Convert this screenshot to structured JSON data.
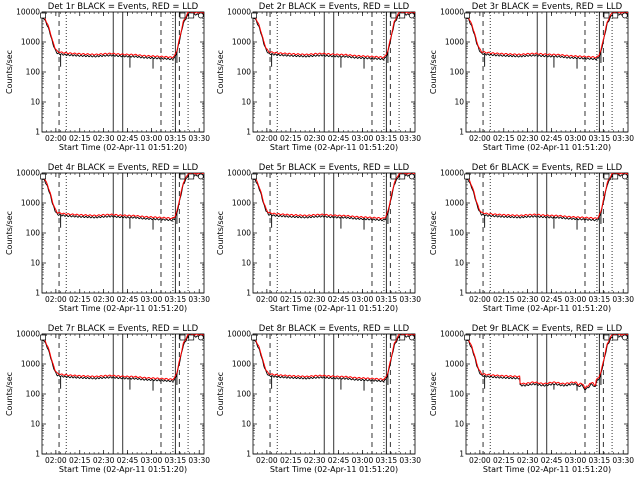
{
  "figure": {
    "panels": [
      {
        "title": "Det 1r BLACK = Events, RED = LLD"
      },
      {
        "title": "Det 2r BLACK = Events, RED = LLD"
      },
      {
        "title": "Det 3r BLACK = Events, RED = LLD"
      },
      {
        "title": "Det 4r BLACK = Events, RED = LLD"
      },
      {
        "title": "Det 5r BLACK = Events, RED = LLD"
      },
      {
        "title": "Det 6r BLACK = Events, RED = LLD"
      },
      {
        "title": "Det 7r BLACK = Events, RED = LLD"
      },
      {
        "title": "Det 8r BLACK = Events, RED = LLD"
      },
      {
        "title": "Det 9r BLACK = Events, RED = LLD"
      }
    ],
    "ylabel": "Counts/sec",
    "xlabel": "Start Time (02-Apr-11 01:51:20)",
    "colors": {
      "events": "#000000",
      "lld": "#ff0000",
      "background": "#ffffff"
    }
  },
  "chart_data": {
    "type": "line",
    "layout": "3x3 grid of identical panels (detectors 1r-9r)",
    "yscale": "log",
    "ylim": [
      1,
      10000
    ],
    "yticks": [
      "1",
      "10",
      "100",
      "1000",
      "10000"
    ],
    "xticks": [
      "02:00",
      "02:15",
      "02:30",
      "02:45",
      "03:00",
      "03:15",
      "03:30"
    ],
    "x_tick_values": [
      120,
      135,
      150,
      165,
      180,
      195,
      210
    ],
    "xlim": [
      111.3,
      213
    ],
    "x_units": "minutes after 00:00 on 02-Apr-11",
    "series": [
      {
        "name": "Events",
        "color": "#000000"
      },
      {
        "name": "LLD",
        "color": "#ff0000"
      }
    ],
    "lld_curve": {
      "x": [
        111.5,
        113,
        115,
        116.5,
        118,
        119.5,
        121,
        124,
        128,
        135,
        145,
        150,
        155,
        160,
        165,
        170,
        175,
        180,
        185,
        190,
        193,
        194.5,
        196,
        198,
        200,
        203,
        206,
        209,
        211,
        212.5
      ],
      "y": [
        8000,
        6000,
        3500,
        2000,
        1000,
        600,
        450,
        420,
        400,
        380,
        360,
        380,
        390,
        370,
        360,
        355,
        330,
        320,
        310,
        300,
        290,
        320,
        500,
        1500,
        4500,
        9000,
        9000,
        9000,
        9000,
        9000
      ]
    },
    "panel_overrides": {
      "Det 9r BLACK = Events, RED = LLD": {
        "dips": [
          {
            "x": 182,
            "y": 190
          },
          {
            "x": 186,
            "y": 150
          },
          {
            "x": 188,
            "y": 170
          },
          {
            "x": 192,
            "y": 175
          }
        ],
        "level_after_145": 220
      }
    },
    "event_spikes_down": [
      {
        "x": 123,
        "y": 150
      },
      {
        "x": 166.5,
        "y": 140
      },
      {
        "x": 181,
        "y": 130
      },
      {
        "x": 196,
        "y": 200
      }
    ],
    "markers": {
      "solid_lines_x": [
        156,
        162,
        195
      ],
      "dashed_lines_x": [
        122,
        186,
        197.5
      ],
      "dotted_lines_x": [
        126.5,
        193.5,
        203
      ],
      "boxes_x": [
        112,
        199.5,
        205
      ],
      "circles_x": [
        211
      ]
    }
  }
}
